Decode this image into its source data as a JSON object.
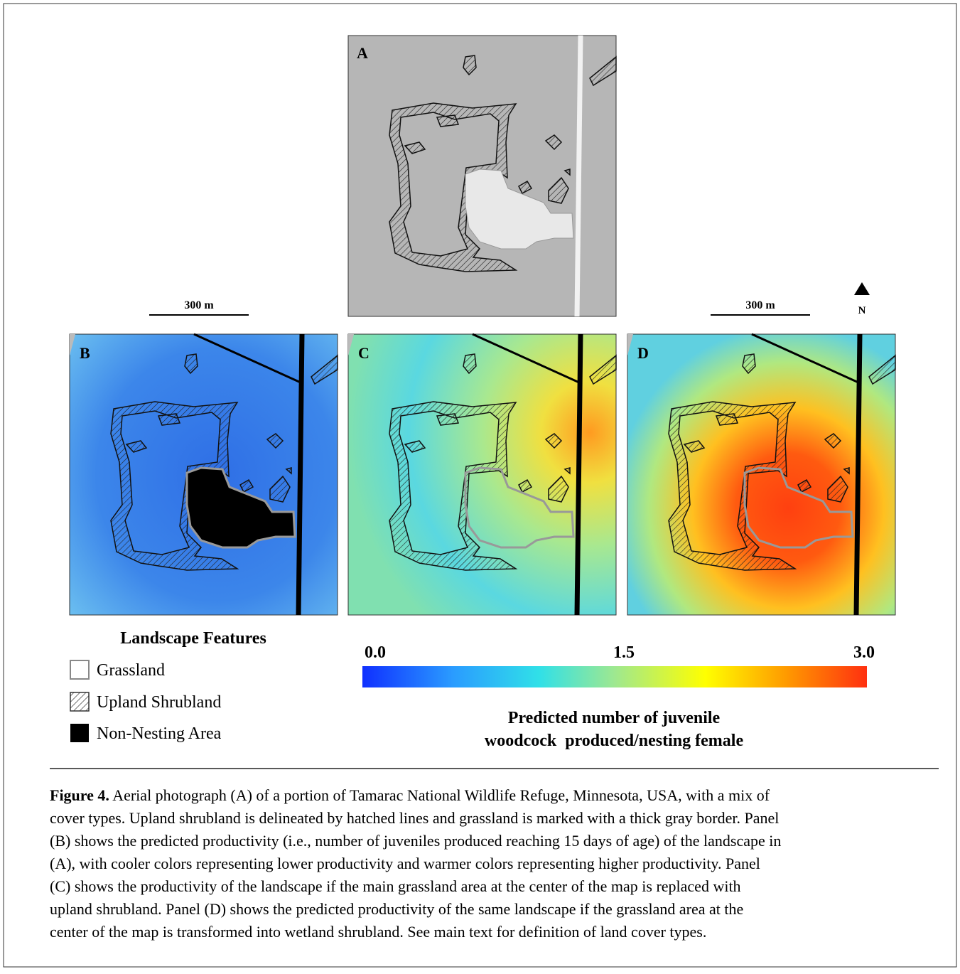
{
  "figure": {
    "panels": {
      "a": "A",
      "b": "B",
      "c": "C",
      "d": "D"
    },
    "scale_bars": [
      "300 m",
      "300 m"
    ],
    "north": "N",
    "legend": {
      "title": "Landscape Features",
      "items": [
        "Grassland",
        "Upland Shrubland",
        "Non-Nesting Area"
      ]
    },
    "colorbar": {
      "labels": [
        "0.0",
        "1.5",
        "3.0"
      ],
      "title_lines": [
        "Predicted number of juvenile",
        "woodcock  produced/nesting female"
      ]
    }
  },
  "caption": {
    "label": "Figure 4.",
    "lines": [
      " Aerial photograph (A) of a portion of Tamarac National Wildlife Refuge, Minnesota, USA, with a mix of",
      "cover types. Upland shrubland is delineated by hatched lines and grassland is marked with a thick gray border. Panel",
      "(B) shows the predicted productivity (i.e., number of juveniles produced reaching 15 days of age) of the landscape in",
      "(A), with cooler colors representing lower productivity and warmer colors representing higher productivity. Panel",
      "(C) shows the productivity of the landscape if the main grassland area at the center of the map is replaced with",
      "upland shrubland. Panel (D) shows the predicted productivity of the same landscape if the grassland area at the",
      "center of the map is transformed into wetland shrubland. See main text for definition of land cover types."
    ]
  }
}
